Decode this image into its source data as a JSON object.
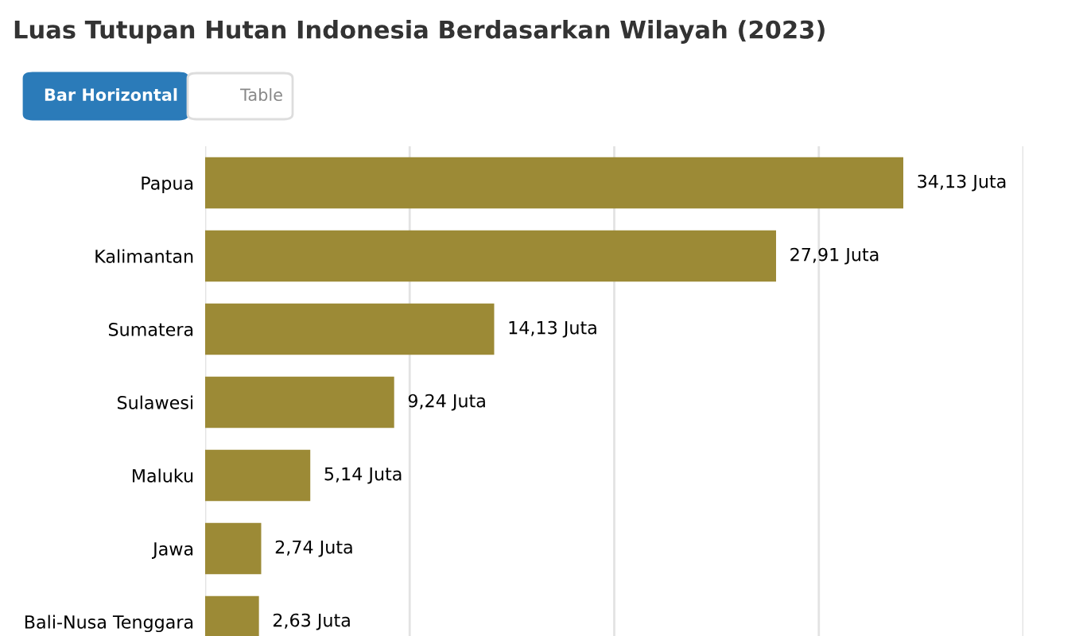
{
  "chart_data": {
    "type": "bar",
    "orientation": "horizontal",
    "title": "Luas Tutupan Hutan Indonesia Berdasarkan Wilayah (2023)",
    "annotations": [
      "Bar Horizontal",
      "Table"
    ],
    "categories": [
      "Papua",
      "Kalimantan",
      "Sumatera",
      "Sulawesi",
      "Maluku",
      "Jawa",
      "Bali-Nusa Tenggara"
    ],
    "values": [
      34.13,
      27.91,
      14.13,
      9.24,
      5.14,
      2.74,
      2.63
    ],
    "value_labels": [
      "34,13 Juta",
      "27,91 Juta",
      "14,13 Juta",
      "9,24 Juta",
      "5,14 Juta",
      "2,74 Juta",
      "2,63 Juta"
    ],
    "color": "#9c8a36",
    "xlim": [
      0,
      40
    ],
    "xticks": [
      {
        "value": 0,
        "label": null
      },
      {
        "value": 10,
        "label": null
      },
      {
        "value": 20,
        "label": null
      },
      {
        "value": 30,
        "label": null
      },
      {
        "value": 40,
        "label": null
      }
    ],
    "grid": "x",
    "tick_labels": "y",
    "legend": false
  }
}
